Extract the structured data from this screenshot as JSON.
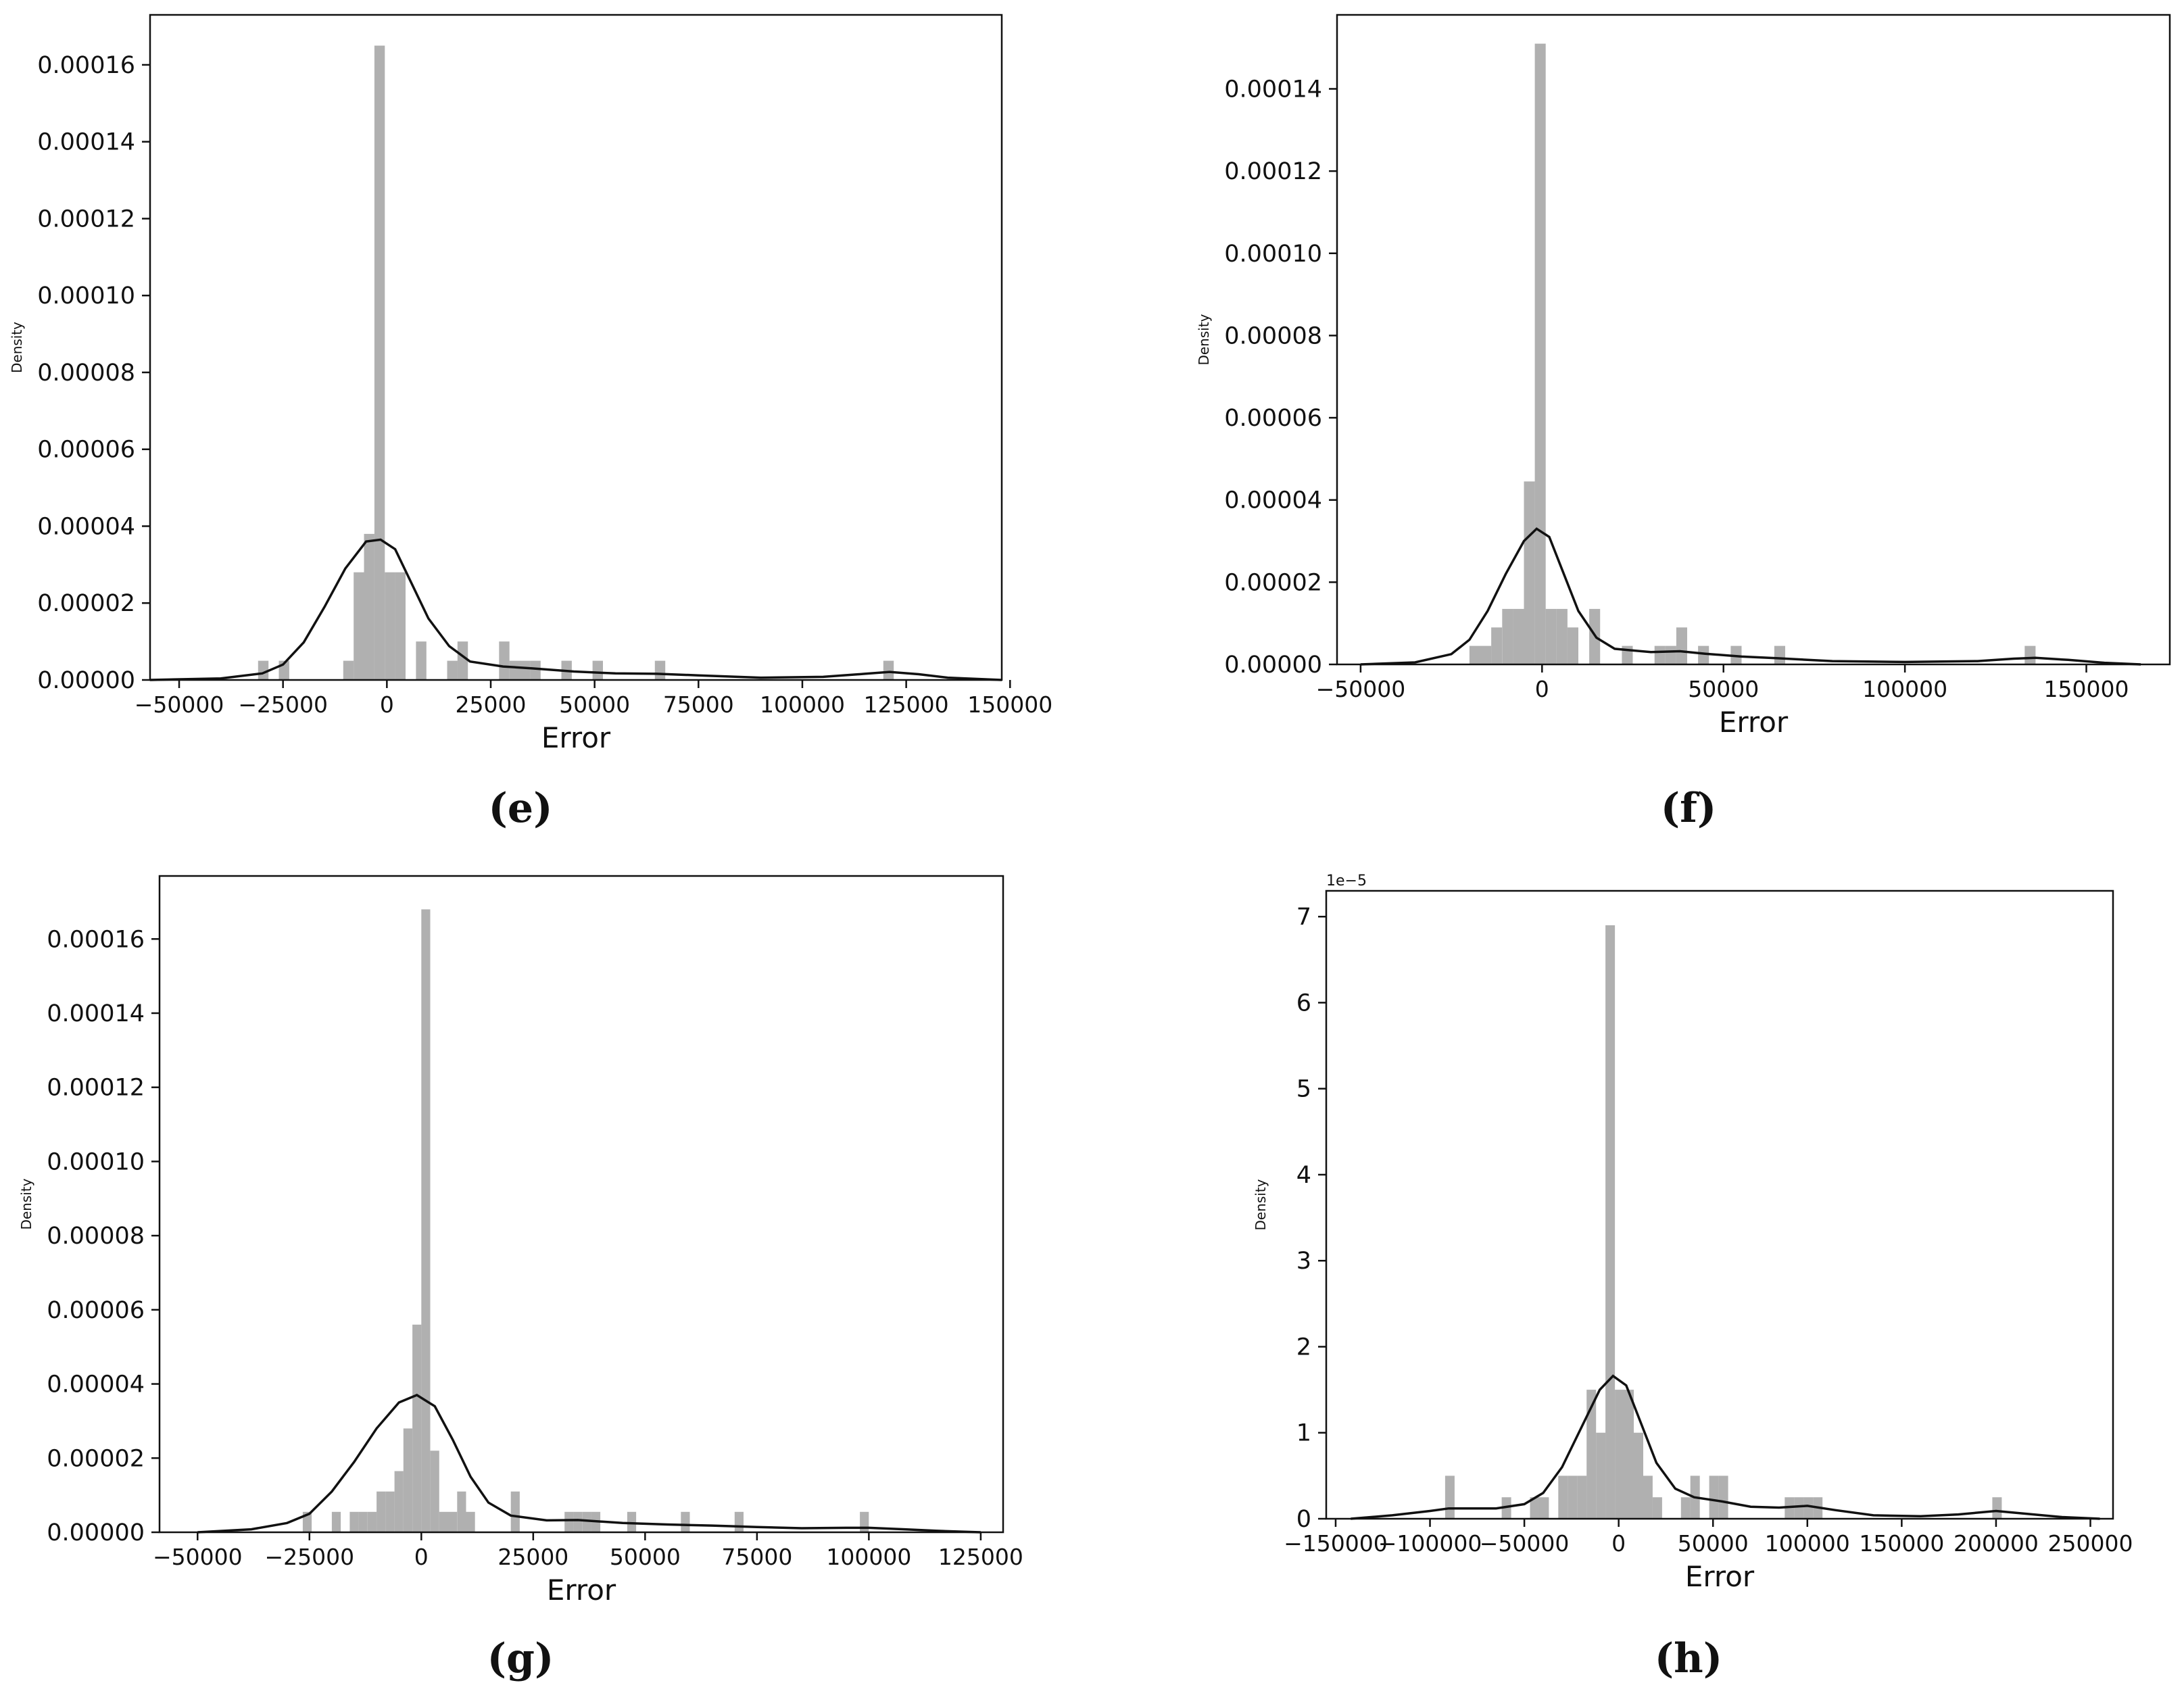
{
  "chart_data": [
    {
      "panel": "e",
      "type": "histogram",
      "xlabel": "Error",
      "ylabel": "Density",
      "xlim": [
        -57000,
        148000
      ],
      "ylim": [
        0,
        0.000173
      ],
      "x_ticks": [
        -50000,
        -25000,
        0,
        25000,
        50000,
        75000,
        100000,
        125000,
        150000
      ],
      "x_tick_labels": [
        "−50000",
        "−25000",
        "0",
        "25000",
        "50000",
        "75000",
        "100000",
        "125000",
        "150000"
      ],
      "y_ticks": [
        0,
        2e-05,
        4e-05,
        6e-05,
        8e-05,
        0.0001,
        0.00012,
        0.00014,
        0.00016
      ],
      "y_tick_labels": [
        "0.00000",
        "0.00002",
        "0.00004",
        "0.00006",
        "0.00008",
        "0.00010",
        "0.00012",
        "0.00014",
        "0.00016"
      ],
      "offset_label": "",
      "bins": [
        {
          "x0": -31000,
          "x1": -28500,
          "density": 5e-06
        },
        {
          "x0": -26000,
          "x1": -23500,
          "density": 5e-06
        },
        {
          "x0": -10500,
          "x1": -8000,
          "density": 5e-06
        },
        {
          "x0": -8000,
          "x1": -5500,
          "density": 2.8e-05
        },
        {
          "x0": -5500,
          "x1": -3000,
          "density": 3.8e-05
        },
        {
          "x0": -3000,
          "x1": -500,
          "density": 0.000165
        },
        {
          "x0": -500,
          "x1": 2000,
          "density": 2.8e-05
        },
        {
          "x0": 2000,
          "x1": 4500,
          "density": 2.8e-05
        },
        {
          "x0": 7000,
          "x1": 9500,
          "density": 1e-05
        },
        {
          "x0": 14500,
          "x1": 17000,
          "density": 5e-06
        },
        {
          "x0": 17000,
          "x1": 19500,
          "density": 1e-05
        },
        {
          "x0": 27000,
          "x1": 29500,
          "density": 1e-05
        },
        {
          "x0": 29500,
          "x1": 32000,
          "density": 5e-06
        },
        {
          "x0": 32000,
          "x1": 34500,
          "density": 5e-06
        },
        {
          "x0": 34500,
          "x1": 37000,
          "density": 5e-06
        },
        {
          "x0": 42000,
          "x1": 44500,
          "density": 5e-06
        },
        {
          "x0": 49500,
          "x1": 52000,
          "density": 5e-06
        },
        {
          "x0": 64500,
          "x1": 67000,
          "density": 5e-06
        },
        {
          "x0": 119500,
          "x1": 122000,
          "density": 5e-06
        }
      ],
      "kde": [
        [
          -57000,
          0
        ],
        [
          -40000,
          4e-07
        ],
        [
          -30000,
          1.7e-06
        ],
        [
          -25000,
          4e-06
        ],
        [
          -20000,
          9.8e-06
        ],
        [
          -15000,
          1.9e-05
        ],
        [
          -10000,
          2.9e-05
        ],
        [
          -5000,
          3.6e-05
        ],
        [
          -1500,
          3.65e-05
        ],
        [
          2000,
          3.4e-05
        ],
        [
          6000,
          2.5e-05
        ],
        [
          10000,
          1.6e-05
        ],
        [
          15000,
          8.8e-06
        ],
        [
          20000,
          4.8e-06
        ],
        [
          28000,
          3.5e-06
        ],
        [
          35000,
          3e-06
        ],
        [
          45000,
          2.2e-06
        ],
        [
          55000,
          1.7e-06
        ],
        [
          65000,
          1.6e-06
        ],
        [
          75000,
          1.2e-06
        ],
        [
          90000,
          6e-07
        ],
        [
          105000,
          8e-07
        ],
        [
          115000,
          1.6e-06
        ],
        [
          121000,
          2.1e-06
        ],
        [
          128000,
          1.5e-06
        ],
        [
          135000,
          6e-07
        ],
        [
          148000,
          0
        ]
      ]
    },
    {
      "panel": "f",
      "type": "histogram",
      "xlabel": "Error",
      "ylabel": "Density",
      "xlim": [
        -56500,
        173000
      ],
      "ylim": [
        0,
        0.000158
      ],
      "x_ticks": [
        -50000,
        0,
        50000,
        100000,
        150000
      ],
      "x_tick_labels": [
        "−50000",
        "0",
        "50000",
        "100000",
        "150000"
      ],
      "y_ticks": [
        0,
        2e-05,
        4e-05,
        6e-05,
        8e-05,
        0.0001,
        0.00012,
        0.00014
      ],
      "y_tick_labels": [
        "0.00000",
        "0.00002",
        "0.00004",
        "0.00006",
        "0.00008",
        "0.00010",
        "0.00012",
        "0.00014"
      ],
      "offset_label": "",
      "bins": [
        {
          "x0": -20000,
          "x1": -17000,
          "density": 4.5e-06
        },
        {
          "x0": -17000,
          "x1": -14000,
          "density": 4.5e-06
        },
        {
          "x0": -14000,
          "x1": -11000,
          "density": 9e-06
        },
        {
          "x0": -11000,
          "x1": -8000,
          "density": 1.35e-05
        },
        {
          "x0": -8000,
          "x1": -5000,
          "density": 1.35e-05
        },
        {
          "x0": -5000,
          "x1": -2000,
          "density": 4.45e-05
        },
        {
          "x0": -2000,
          "x1": 1000,
          "density": 0.000151
        },
        {
          "x0": 1000,
          "x1": 4000,
          "density": 1.35e-05
        },
        {
          "x0": 4000,
          "x1": 7000,
          "density": 1.35e-05
        },
        {
          "x0": 7000,
          "x1": 10000,
          "density": 9e-06
        },
        {
          "x0": 13000,
          "x1": 16000,
          "density": 1.35e-05
        },
        {
          "x0": 22000,
          "x1": 25000,
          "density": 4.5e-06
        },
        {
          "x0": 31000,
          "x1": 34000,
          "density": 4.5e-06
        },
        {
          "x0": 34000,
          "x1": 37000,
          "density": 4.5e-06
        },
        {
          "x0": 37000,
          "x1": 40000,
          "density": 9e-06
        },
        {
          "x0": 43000,
          "x1": 46000,
          "density": 4.5e-06
        },
        {
          "x0": 52000,
          "x1": 55000,
          "density": 4.5e-06
        },
        {
          "x0": 64000,
          "x1": 67000,
          "density": 4.5e-06
        },
        {
          "x0": 133000,
          "x1": 136000,
          "density": 4.5e-06
        }
      ],
      "kde": [
        [
          -50000,
          0
        ],
        [
          -35000,
          5e-07
        ],
        [
          -25000,
          2.5e-06
        ],
        [
          -20000,
          6e-06
        ],
        [
          -15000,
          1.3e-05
        ],
        [
          -10000,
          2.2e-05
        ],
        [
          -5000,
          3e-05
        ],
        [
          -1500,
          3.3e-05
        ],
        [
          2000,
          3.1e-05
        ],
        [
          6000,
          2.2e-05
        ],
        [
          10000,
          1.3e-05
        ],
        [
          15000,
          6.5e-06
        ],
        [
          20000,
          3.8e-06
        ],
        [
          30000,
          3e-06
        ],
        [
          38000,
          3.2e-06
        ],
        [
          45000,
          2.6e-06
        ],
        [
          55000,
          1.9e-06
        ],
        [
          65000,
          1.5e-06
        ],
        [
          80000,
          8e-07
        ],
        [
          100000,
          6e-07
        ],
        [
          120000,
          8e-07
        ],
        [
          130000,
          1.4e-06
        ],
        [
          136000,
          1.6e-06
        ],
        [
          145000,
          1.1e-06
        ],
        [
          155000,
          4e-07
        ],
        [
          165000,
          0
        ]
      ]
    },
    {
      "panel": "g",
      "type": "histogram",
      "xlabel": "Error",
      "ylabel": "Density",
      "xlim": [
        -58500,
        130000
      ],
      "ylim": [
        0,
        0.000177
      ],
      "x_ticks": [
        -50000,
        -25000,
        0,
        25000,
        50000,
        75000,
        100000,
        125000
      ],
      "x_tick_labels": [
        "−50000",
        "−25000",
        "0",
        "25000",
        "50000",
        "75000",
        "100000",
        "125000"
      ],
      "y_ticks": [
        0,
        2e-05,
        4e-05,
        6e-05,
        8e-05,
        0.0001,
        0.00012,
        0.00014,
        0.00016
      ],
      "y_tick_labels": [
        "0.00000",
        "0.00002",
        "0.00004",
        "0.00006",
        "0.00008",
        "0.00010",
        "0.00012",
        "0.00014",
        "0.00016"
      ],
      "offset_label": "",
      "bins": [
        {
          "x0": -26500,
          "x1": -24500,
          "density": 5.5e-06
        },
        {
          "x0": -20000,
          "x1": -18000,
          "density": 5.5e-06
        },
        {
          "x0": -16000,
          "x1": -14000,
          "density": 5.5e-06
        },
        {
          "x0": -14000,
          "x1": -12000,
          "density": 5.5e-06
        },
        {
          "x0": -12000,
          "x1": -10000,
          "density": 5.5e-06
        },
        {
          "x0": -10000,
          "x1": -8000,
          "density": 1.1e-05
        },
        {
          "x0": -8000,
          "x1": -6000,
          "density": 1.1e-05
        },
        {
          "x0": -6000,
          "x1": -4000,
          "density": 1.65e-05
        },
        {
          "x0": -4000,
          "x1": -2000,
          "density": 2.8e-05
        },
        {
          "x0": -2000,
          "x1": 0,
          "density": 5.6e-05
        },
        {
          "x0": 0,
          "x1": 2000,
          "density": 0.000168
        },
        {
          "x0": 2000,
          "x1": 4000,
          "density": 2.2e-05
        },
        {
          "x0": 4000,
          "x1": 6000,
          "density": 5.5e-06
        },
        {
          "x0": 6000,
          "x1": 8000,
          "density": 5.5e-06
        },
        {
          "x0": 8000,
          "x1": 10000,
          "density": 1.1e-05
        },
        {
          "x0": 10000,
          "x1": 12000,
          "density": 5.5e-06
        },
        {
          "x0": 20000,
          "x1": 22000,
          "density": 1.1e-05
        },
        {
          "x0": 32000,
          "x1": 34000,
          "density": 5.5e-06
        },
        {
          "x0": 34000,
          "x1": 36000,
          "density": 5.5e-06
        },
        {
          "x0": 36000,
          "x1": 38000,
          "density": 5.5e-06
        },
        {
          "x0": 38000,
          "x1": 40000,
          "density": 5.5e-06
        },
        {
          "x0": 46000,
          "x1": 48000,
          "density": 5.5e-06
        },
        {
          "x0": 58000,
          "x1": 60000,
          "density": 5.5e-06
        },
        {
          "x0": 70000,
          "x1": 72000,
          "density": 5.5e-06
        },
        {
          "x0": 98000,
          "x1": 100000,
          "density": 5.5e-06
        }
      ],
      "kde": [
        [
          -50000,
          0
        ],
        [
          -38000,
          8e-07
        ],
        [
          -30000,
          2.5e-06
        ],
        [
          -25000,
          5e-06
        ],
        [
          -20000,
          1.1e-05
        ],
        [
          -15000,
          1.9e-05
        ],
        [
          -10000,
          2.8e-05
        ],
        [
          -5000,
          3.5e-05
        ],
        [
          -1000,
          3.7e-05
        ],
        [
          3000,
          3.4e-05
        ],
        [
          7000,
          2.5e-05
        ],
        [
          11000,
          1.5e-05
        ],
        [
          15000,
          8e-06
        ],
        [
          20000,
          4.5e-06
        ],
        [
          28000,
          3.2e-06
        ],
        [
          35000,
          3.3e-06
        ],
        [
          45000,
          2.5e-06
        ],
        [
          55000,
          2.1e-06
        ],
        [
          65000,
          1.8e-06
        ],
        [
          75000,
          1.4e-06
        ],
        [
          85000,
          1.1e-06
        ],
        [
          95000,
          1.2e-06
        ],
        [
          100000,
          1.2e-06
        ],
        [
          108000,
          8e-07
        ],
        [
          115000,
          4e-07
        ],
        [
          125000,
          0
        ]
      ]
    },
    {
      "panel": "h",
      "type": "histogram",
      "xlabel": "Error",
      "ylabel": "Density",
      "xlim": [
        -155000,
        262000
      ],
      "ylim": [
        0,
        7.3
      ],
      "x_ticks": [
        -150000,
        -100000,
        -50000,
        0,
        50000,
        100000,
        150000,
        200000,
        250000
      ],
      "x_tick_labels": [
        "−150000",
        "−100000",
        "−50000",
        "0",
        "50000",
        "100000",
        "150000",
        "200000",
        "250000"
      ],
      "y_ticks": [
        0,
        1,
        2,
        3,
        4,
        5,
        6,
        7
      ],
      "y_tick_labels": [
        "0",
        "1",
        "2",
        "3",
        "4",
        "5",
        "6",
        "7"
      ],
      "offset_label": "1e−5",
      "bins": [
        {
          "x0": -92000,
          "x1": -87000,
          "density": 0.5
        },
        {
          "x0": -62000,
          "x1": -57000,
          "density": 0.25
        },
        {
          "x0": -47000,
          "x1": -42000,
          "density": 0.25
        },
        {
          "x0": -42000,
          "x1": -37000,
          "density": 0.25
        },
        {
          "x0": -32000,
          "x1": -27000,
          "density": 0.5
        },
        {
          "x0": -27000,
          "x1": -22000,
          "density": 0.5
        },
        {
          "x0": -22000,
          "x1": -17000,
          "density": 0.5
        },
        {
          "x0": -17000,
          "x1": -12000,
          "density": 1.5
        },
        {
          "x0": -12000,
          "x1": -7000,
          "density": 1.0
        },
        {
          "x0": -7000,
          "x1": -2000,
          "density": 6.9
        },
        {
          "x0": -2000,
          "x1": 3000,
          "density": 1.5
        },
        {
          "x0": 3000,
          "x1": 8000,
          "density": 1.5
        },
        {
          "x0": 8000,
          "x1": 13000,
          "density": 1.0
        },
        {
          "x0": 13000,
          "x1": 18000,
          "density": 0.5
        },
        {
          "x0": 18000,
          "x1": 23000,
          "density": 0.25
        },
        {
          "x0": 33000,
          "x1": 38000,
          "density": 0.25
        },
        {
          "x0": 38000,
          "x1": 43000,
          "density": 0.5
        },
        {
          "x0": 48000,
          "x1": 53000,
          "density": 0.5
        },
        {
          "x0": 53000,
          "x1": 58000,
          "density": 0.5
        },
        {
          "x0": 88000,
          "x1": 93000,
          "density": 0.25
        },
        {
          "x0": 93000,
          "x1": 98000,
          "density": 0.25
        },
        {
          "x0": 98000,
          "x1": 103000,
          "density": 0.25
        },
        {
          "x0": 103000,
          "x1": 108000,
          "density": 0.25
        },
        {
          "x0": 198000,
          "x1": 203000,
          "density": 0.25
        }
      ],
      "kde": [
        [
          -142000,
          0
        ],
        [
          -120000,
          0.04
        ],
        [
          -100000,
          0.09
        ],
        [
          -90000,
          0.12
        ],
        [
          -80000,
          0.12
        ],
        [
          -65000,
          0.12
        ],
        [
          -50000,
          0.17
        ],
        [
          -40000,
          0.3
        ],
        [
          -30000,
          0.6
        ],
        [
          -20000,
          1.05
        ],
        [
          -10000,
          1.5
        ],
        [
          -3000,
          1.66
        ],
        [
          4000,
          1.55
        ],
        [
          12000,
          1.1
        ],
        [
          20000,
          0.65
        ],
        [
          30000,
          0.35
        ],
        [
          40000,
          0.25
        ],
        [
          55000,
          0.2
        ],
        [
          70000,
          0.14
        ],
        [
          85000,
          0.13
        ],
        [
          100000,
          0.15
        ],
        [
          115000,
          0.1
        ],
        [
          135000,
          0.04
        ],
        [
          160000,
          0.03
        ],
        [
          180000,
          0.05
        ],
        [
          200000,
          0.09
        ],
        [
          215000,
          0.06
        ],
        [
          235000,
          0.02
        ],
        [
          255000,
          0
        ]
      ]
    }
  ],
  "captions": [
    "(e)",
    "(f)",
    "(g)",
    "(h)"
  ]
}
